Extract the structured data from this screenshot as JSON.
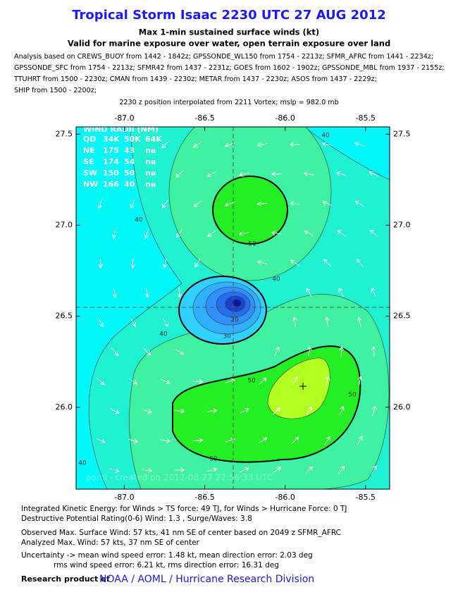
{
  "header": {
    "title": "Tropical Storm Isaac 2230 UTC 27 AUG 2012",
    "subtitle": [
      "Max 1-min sustained surface winds (kt)",
      "Valid for marine exposure over water, open terrain exposure over land"
    ],
    "analysis": [
      "Analysis based on CREWS_BUOY from 1442 - 1842z; GPSSONDE_WL150 from 1754 - 2213z; SFMR_AFRC from 1441 - 2234z;",
      "GPSSONDE_SFC from 1754 - 2213z; SFMR42 from 1437 - 2231z; GOES from 1602 - 1902z; GPSSONDE_MBL from 1937 - 2155z;",
      "TTUHRT from 1500 - 2230z; CMAN from 1439 - 2230z; METAR from 1437 - 2230z; ASOS from 1437 - 2229z;",
      "SHIP from 1500 - 2200z;"
    ],
    "position": "2230 z position interpolated from 2211 Vortex; mslp = 982.0 mb"
  },
  "map": {
    "xlim": [
      -87.3,
      -85.35
    ],
    "ylim": [
      25.55,
      27.54
    ],
    "xticks": [
      {
        "value": -87,
        "label": "-87.0"
      },
      -86.5,
      {
        "value": -86,
        "label": "-86.0"
      },
      -85.5
    ],
    "yticks": [
      27.5,
      {
        "value": 27,
        "label": "27.0"
      },
      26.5,
      {
        "value": 26,
        "label": "26.0"
      }
    ],
    "wind_radii": {
      "title": "WIND RADII (NM)",
      "rows": [
        [
          "QD",
          "34K",
          "50K",
          "64K"
        ],
        [
          "NE",
          "175",
          "43",
          "na"
        ],
        [
          "SE",
          "174",
          "54",
          "na"
        ],
        [
          "SW",
          "150",
          "50",
          "na"
        ],
        [
          "NW",
          "166",
          "40",
          "na"
        ]
      ]
    },
    "contour_labels": [
      40,
      40,
      50,
      40,
      20,
      30,
      40,
      50,
      50,
      50,
      40
    ],
    "watermark": "aoml - created on 2012-08-27 22:56:33 UTC"
  },
  "footer": {
    "lines": [
      "Integrated Kinetic Energy: for Winds > TS force: 49 TJ, for Winds > Hurricane Force: 0 TJ",
      "Destructive Potential Rating(0-6)  Wind: 1.3 , Surge/Waves: 3.8",
      "Observed Max. Surface Wind: 57 kts, 41 nm SE of center based on 2049 z SFMR_AFRC",
      "Analyzed Max. Wind: 57 kts, 37 nm  SE of center",
      "Uncertainty -> mean wind speed error: 1.48 kt, mean direction error: 2.03 deg",
      "rms wind speed error: 6.21 kt, rms direction error: 16.31 deg"
    ],
    "credit": "Research product of",
    "org": "NOAA / AOML / Hurricane Research Division"
  }
}
